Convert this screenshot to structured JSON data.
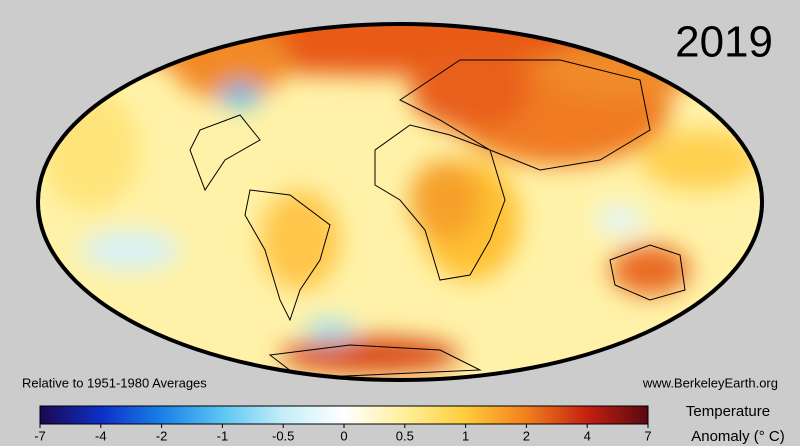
{
  "title": "2019",
  "footnote_left": "Relative to 1951-1980 Averages",
  "footnote_right": "www.BerkeleyEarth.org",
  "colorbar": {
    "label": [
      "Temperature",
      "Anomaly (° C)"
    ],
    "ticks": [
      -7,
      -4,
      -2,
      -1,
      -0.5,
      0,
      0.5,
      1,
      2,
      4,
      7
    ],
    "colors": [
      "#1b0850",
      "#0c2fc8",
      "#1a80e8",
      "#5cc6f2",
      "#c4eef8",
      "#ffffff",
      "#fff09a",
      "#ffcc3a",
      "#f2801e",
      "#c42010",
      "#5a0810"
    ]
  }
}
